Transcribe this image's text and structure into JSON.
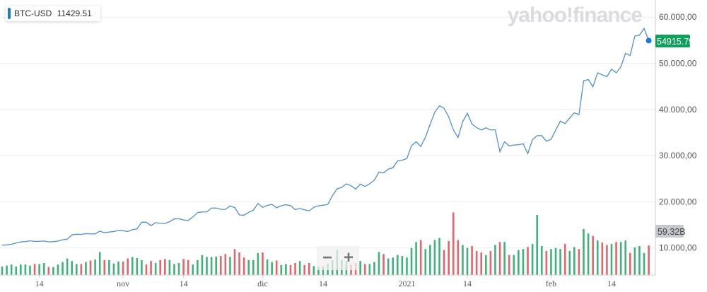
{
  "legend": {
    "symbol": "BTC-USD",
    "value": "11429.51",
    "color": "#1a7ad9"
  },
  "watermark": "yahoo!finance",
  "zoom_controls": {
    "zoom_out": "−",
    "zoom_in": "+"
  },
  "colors": {
    "line": "#4f8fcf",
    "up": "#3fb17a",
    "down": "#e6636a",
    "last_price_badge": "#0fa05a",
    "volume_badge": "#c5c8cf"
  },
  "chart_data": {
    "type": "line",
    "series": [
      {
        "symbol": "BTC-USD"
      }
    ],
    "x_start": "2020-10-06",
    "x_end": "2021-02-22",
    "x_tick_labels": [
      {
        "date": "2020-10-14",
        "label": "14"
      },
      {
        "date": "2020-11-01",
        "label": "nov"
      },
      {
        "date": "2020-11-14",
        "label": "14"
      },
      {
        "date": "2020-12-01",
        "label": "dic"
      },
      {
        "date": "2020-12-14",
        "label": "14"
      },
      {
        "date": "2021-01-01",
        "label": "2021"
      },
      {
        "date": "2021-01-14",
        "label": "14"
      },
      {
        "date": "2021-02-01",
        "label": "feb"
      },
      {
        "date": "2021-02-14",
        "label": "14"
      }
    ],
    "y_ticks": [
      10000,
      20000,
      30000,
      40000,
      50000,
      60000
    ],
    "y_tick_labels": [
      "10.000,00",
      "20.000,00",
      "30.000,00",
      "40.000,00",
      "50.000,00",
      "60.000,00"
    ],
    "grid": true,
    "last_price_label": "54915.79",
    "volume_label": "59.32B",
    "volume_label_value_billions": 59.32,
    "close": [
      10600,
      10670,
      10790,
      11060,
      11300,
      11380,
      11550,
      11430,
      11430,
      11500,
      11320,
      11360,
      11480,
      11740,
      11920,
      12820,
      12970,
      12930,
      13110,
      13030,
      13070,
      13640,
      13270,
      13450,
      13560,
      13780,
      13740,
      13550,
      13950,
      14130,
      15580,
      15570,
      14830,
      15480,
      15330,
      15300,
      15700,
      16280,
      16320,
      16070,
      15960,
      16730,
      17660,
      17800,
      17820,
      18620,
      18640,
      18370,
      18360,
      19100,
      18730,
      17150,
      17110,
      17720,
      18180,
      19630,
      18800,
      19200,
      19450,
      18700,
      19150,
      19360,
      19170,
      18320,
      18550,
      18260,
      18060,
      18800,
      19140,
      19250,
      19430,
      21310,
      22810,
      23140,
      23870,
      23480,
      22750,
      23830,
      23330,
      23870,
      24660,
      26440,
      26270,
      27080,
      27360,
      28840,
      29000,
      29370,
      32130,
      33000,
      31970,
      33990,
      36820,
      39370,
      40800,
      40250,
      38360,
      35570,
      33920,
      37320,
      39190,
      36830,
      36070,
      35550,
      36000,
      35550,
      35600,
      30820,
      33010,
      32100,
      32290,
      32370,
      32570,
      30430,
      33470,
      34320,
      34320,
      33110,
      33540,
      35510,
      37470,
      36930,
      38140,
      39270,
      38900,
      46200,
      46480,
      44920,
      47910,
      47500,
      47110,
      48720,
      47940,
      49200,
      52150,
      51680,
      55890,
      56100,
      57540,
      54915.79
    ],
    "volume_billions": [
      17,
      19,
      21,
      17,
      21,
      21,
      19,
      22,
      22,
      24,
      16,
      16,
      21,
      26,
      33,
      28,
      22,
      22,
      26,
      29,
      31,
      46,
      30,
      30,
      23,
      27,
      27,
      33,
      36,
      34,
      30,
      21,
      28,
      24,
      30,
      32,
      30,
      22,
      24,
      32,
      30,
      21,
      30,
      40,
      36,
      36,
      37,
      38,
      42,
      36,
      52,
      45,
      35,
      30,
      30,
      44,
      45,
      31,
      26,
      29,
      20,
      22,
      20,
      24,
      28,
      20,
      24,
      18,
      17,
      17,
      22,
      30,
      50,
      30,
      28,
      20,
      24,
      28,
      22,
      22,
      26,
      46,
      42,
      33,
      35,
      40,
      38,
      35,
      54,
      66,
      70,
      52,
      60,
      70,
      74,
      50,
      68,
      125,
      70,
      60,
      54,
      58,
      48,
      45,
      40,
      48,
      60,
      66,
      66,
      40,
      40,
      50,
      52,
      56,
      62,
      120,
      58,
      48,
      52,
      54,
      52,
      62,
      48,
      56,
      52,
      92,
      83,
      78,
      69,
      65,
      60,
      62,
      66,
      66,
      69,
      44,
      55,
      58,
      44,
      59
    ]
  }
}
